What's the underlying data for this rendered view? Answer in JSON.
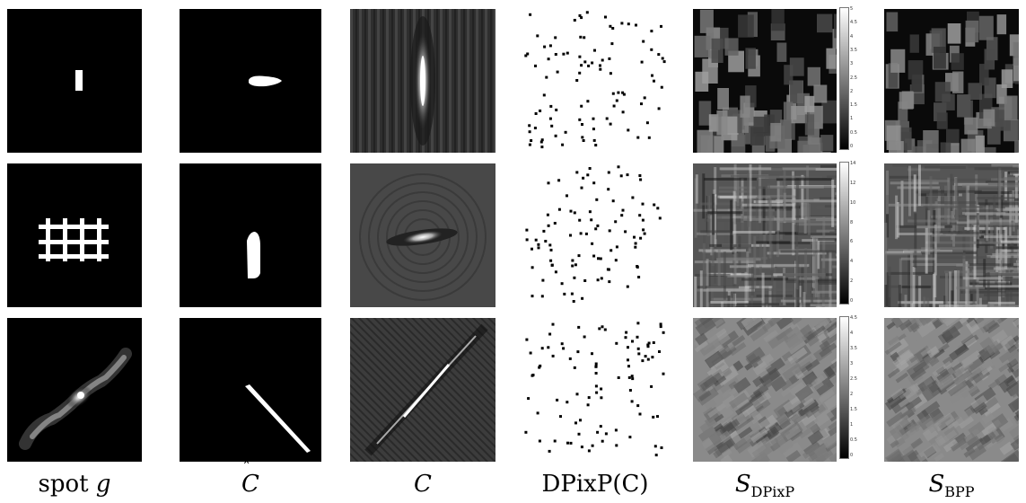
{
  "captions": {
    "c1_prefix": "spot ",
    "c1_var": "g",
    "c2": "C",
    "c3": "C",
    "c4": "DPixP(C)",
    "c5_main": "S",
    "c5_sub": "DPixP",
    "c6_main": "S",
    "c6_sub": "BPP"
  },
  "colorbars": [
    {
      "ticks": [
        "5",
        "4.5",
        "4",
        "3.5",
        "3",
        "2.5",
        "2",
        "1.5",
        "1",
        "0.5",
        "0"
      ]
    },
    {
      "ticks": [
        "14",
        "12",
        "10",
        "8",
        "6",
        "4",
        "2",
        "0"
      ]
    },
    {
      "ticks": [
        "4.5",
        "4",
        "3.5",
        "3",
        "2.5",
        "2",
        "1.5",
        "1",
        "0.5",
        "0"
      ]
    }
  ],
  "colors": {
    "background": "#ffffff",
    "image_black": "#000000",
    "image_white": "#ffffff"
  }
}
